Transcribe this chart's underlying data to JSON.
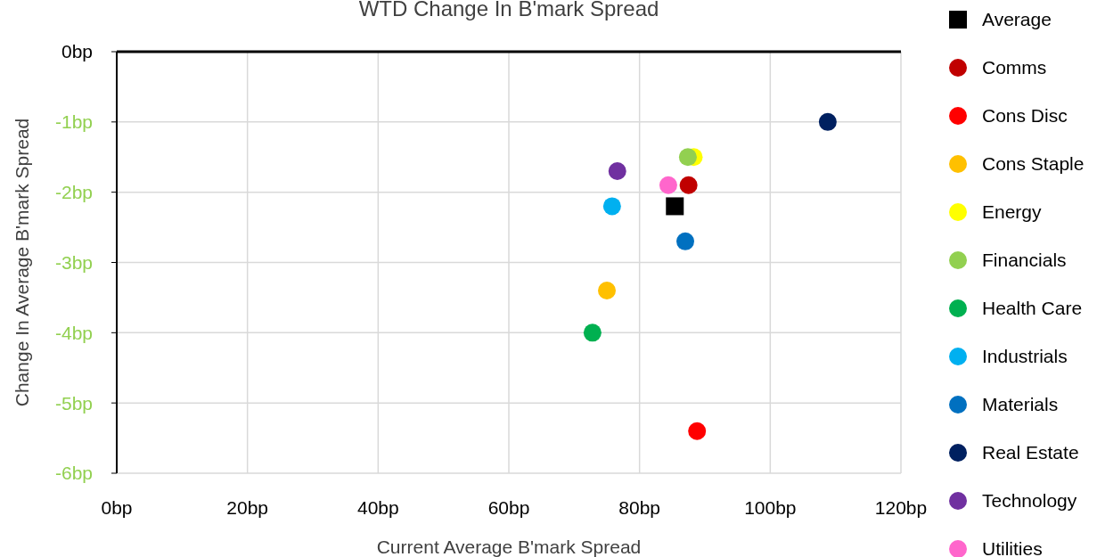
{
  "chart_data": {
    "type": "scatter",
    "title": "WTD Change In B'mark Spread",
    "xlabel": "Current Average B'mark Spread",
    "ylabel": "Change In Average B'mark Spread",
    "xlim": [
      0,
      120
    ],
    "xticks": [
      {
        "value": 0,
        "label": "0bp"
      },
      {
        "value": 20,
        "label": "20bp"
      },
      {
        "value": 40,
        "label": "40bp"
      },
      {
        "value": 60,
        "label": "60bp"
      },
      {
        "value": 80,
        "label": "80bp"
      },
      {
        "value": 100,
        "label": "100bp"
      },
      {
        "value": 120,
        "label": "120bp"
      }
    ],
    "ylim": [
      -6,
      0
    ],
    "yticks": [
      {
        "value": 0,
        "label": "0bp"
      },
      {
        "value": -1,
        "label": "-1bp"
      },
      {
        "value": -2,
        "label": "-2bp"
      },
      {
        "value": -3,
        "label": "-3bp"
      },
      {
        "value": -4,
        "label": "-4bp"
      },
      {
        "value": -5,
        "label": "-5bp"
      },
      {
        "value": -6,
        "label": "-6bp"
      }
    ],
    "grid": true,
    "legend": "right",
    "marker": "circle",
    "series": [
      {
        "name": "Average",
        "color": "#000000",
        "marker": "square",
        "x": [
          85.4
        ],
        "values": [
          -2.2
        ]
      },
      {
        "name": "Comms",
        "color": "#c00000",
        "x": [
          87.5
        ],
        "values": [
          -1.9
        ]
      },
      {
        "name": "Cons Disc",
        "color": "#ff0000",
        "x": [
          88.8
        ],
        "values": [
          -5.4
        ]
      },
      {
        "name": "Cons Staple",
        "color": "#ffc000",
        "x": [
          75.0
        ],
        "values": [
          -3.4
        ]
      },
      {
        "name": "Energy",
        "color": "#ffff00",
        "x": [
          88.3
        ],
        "values": [
          -1.5
        ]
      },
      {
        "name": "Financials",
        "color": "#92d050",
        "x": [
          87.4
        ],
        "values": [
          -1.5
        ]
      },
      {
        "name": "Health Care",
        "color": "#00b050",
        "x": [
          72.8
        ],
        "values": [
          -4.0
        ]
      },
      {
        "name": "Industrials",
        "color": "#00b0f0",
        "x": [
          75.8
        ],
        "values": [
          -2.2
        ]
      },
      {
        "name": "Materials",
        "color": "#0070c0",
        "x": [
          87.0
        ],
        "values": [
          -2.7
        ]
      },
      {
        "name": "Real Estate",
        "color": "#002060",
        "x": [
          108.8
        ],
        "values": [
          -1.0
        ]
      },
      {
        "name": "Technology",
        "color": "#7030a0",
        "x": [
          76.6
        ],
        "values": [
          -1.7
        ]
      },
      {
        "name": "Utilities",
        "color": "#ff66cc",
        "x": [
          84.4
        ],
        "values": [
          -1.9
        ]
      }
    ]
  }
}
